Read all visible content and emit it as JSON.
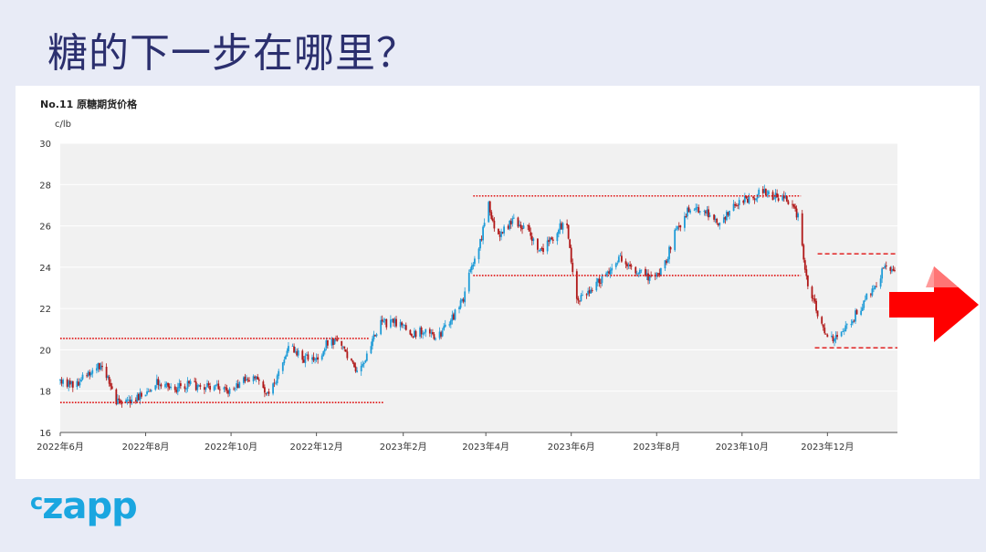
{
  "slide": {
    "title": "糖的下一步在哪里？",
    "logo_small": "c",
    "logo_main": "zapp"
  },
  "chart_data": {
    "type": "candlestick",
    "title": "No.11 原糖期货价格",
    "unit": "c/lb",
    "ylim": [
      16,
      30
    ],
    "yticks": [
      16,
      18,
      20,
      22,
      24,
      26,
      28,
      30
    ],
    "x_range": [
      "2022-06-01",
      "2024-01-20"
    ],
    "xticks": [
      {
        "label": "2022年6月",
        "date": "2022-06-01"
      },
      {
        "label": "2022年8月",
        "date": "2022-08-01"
      },
      {
        "label": "2022年10月",
        "date": "2022-10-01"
      },
      {
        "label": "2022年12月",
        "date": "2022-12-01"
      },
      {
        "label": "2023年2月",
        "date": "2023-02-01"
      },
      {
        "label": "2023年4月",
        "date": "2023-04-01"
      },
      {
        "label": "2023年6月",
        "date": "2023-06-01"
      },
      {
        "label": "2023年8月",
        "date": "2023-08-01"
      },
      {
        "label": "2023年10月",
        "date": "2023-10-01"
      },
      {
        "label": "2023年12月",
        "date": "2023-12-01"
      }
    ],
    "grid": true,
    "up_color": "#1e9bd7",
    "down_color": "#b01818",
    "price_path": [
      [
        "2022-06-01",
        18.5
      ],
      [
        "2022-06-12",
        18.3
      ],
      [
        "2022-06-22",
        18.9
      ],
      [
        "2022-07-01",
        19.3
      ],
      [
        "2022-07-10",
        17.6
      ],
      [
        "2022-07-22",
        17.5
      ],
      [
        "2022-08-01",
        18.0
      ],
      [
        "2022-08-10",
        18.5
      ],
      [
        "2022-08-20",
        18.1
      ],
      [
        "2022-09-01",
        18.3
      ],
      [
        "2022-09-12",
        18.2
      ],
      [
        "2022-09-22",
        18.3
      ],
      [
        "2022-10-01",
        17.9
      ],
      [
        "2022-10-10",
        18.7
      ],
      [
        "2022-10-20",
        18.6
      ],
      [
        "2022-10-28",
        17.7
      ],
      [
        "2022-11-05",
        18.9
      ],
      [
        "2022-11-12",
        20.2
      ],
      [
        "2022-11-22",
        19.6
      ],
      [
        "2022-12-01",
        19.5
      ],
      [
        "2022-12-10",
        20.5
      ],
      [
        "2022-12-17",
        20.3
      ],
      [
        "2022-12-28",
        19.1
      ],
      [
        "2023-01-06",
        19.6
      ],
      [
        "2023-01-15",
        21.3
      ],
      [
        "2023-01-24",
        21.3
      ],
      [
        "2023-02-01",
        21.3
      ],
      [
        "2023-02-06",
        20.6
      ],
      [
        "2023-02-15",
        21.0
      ],
      [
        "2023-02-24",
        20.5
      ],
      [
        "2023-03-05",
        21.2
      ],
      [
        "2023-03-15",
        22.3
      ],
      [
        "2023-03-22",
        24.0
      ],
      [
        "2023-03-29",
        25.5
      ],
      [
        "2023-04-03",
        27.0
      ],
      [
        "2023-04-10",
        25.4
      ],
      [
        "2023-04-20",
        26.3
      ],
      [
        "2023-05-01",
        25.8
      ],
      [
        "2023-05-10",
        24.8
      ],
      [
        "2023-05-20",
        25.5
      ],
      [
        "2023-05-28",
        26.3
      ],
      [
        "2023-06-05",
        22.4
      ],
      [
        "2023-06-15",
        23.0
      ],
      [
        "2023-06-25",
        23.6
      ],
      [
        "2023-07-05",
        24.5
      ],
      [
        "2023-07-15",
        23.9
      ],
      [
        "2023-07-25",
        23.5
      ],
      [
        "2023-08-05",
        23.8
      ],
      [
        "2023-08-15",
        25.8
      ],
      [
        "2023-08-25",
        26.9
      ],
      [
        "2023-09-05",
        26.7
      ],
      [
        "2023-09-15",
        26.0
      ],
      [
        "2023-09-25",
        27.1
      ],
      [
        "2023-10-05",
        27.3
      ],
      [
        "2023-10-15",
        27.7
      ],
      [
        "2023-10-25",
        27.4
      ],
      [
        "2023-11-02",
        27.3
      ],
      [
        "2023-11-10",
        26.5
      ],
      [
        "2023-11-16",
        23.5
      ],
      [
        "2023-11-24",
        21.7
      ],
      [
        "2023-12-01",
        20.5
      ],
      [
        "2023-12-10",
        20.6
      ],
      [
        "2023-12-20",
        21.6
      ],
      [
        "2023-12-28",
        22.4
      ],
      [
        "2024-01-05",
        23.2
      ],
      [
        "2024-01-12",
        24.1
      ],
      [
        "2024-01-18",
        23.8
      ]
    ],
    "reference_lines": [
      {
        "style": "dotted",
        "y": 17.45,
        "from": "2022-06-01",
        "to": "2023-01-18"
      },
      {
        "style": "dotted",
        "y": 20.55,
        "from": "2022-06-01",
        "to": "2023-01-08"
      },
      {
        "style": "dotted",
        "y": 27.45,
        "from": "2023-03-23",
        "to": "2023-11-12"
      },
      {
        "style": "dotted",
        "y": 23.6,
        "from": "2023-03-23",
        "to": "2023-11-12"
      },
      {
        "style": "dashed",
        "y": 24.65,
        "from": "2023-11-24",
        "to": "2024-01-20"
      },
      {
        "style": "dashed",
        "y": 20.1,
        "from": "2023-11-22",
        "to": "2024-01-20"
      }
    ],
    "annotation": {
      "shape": "arrow-right",
      "color": "#ff0000"
    }
  }
}
